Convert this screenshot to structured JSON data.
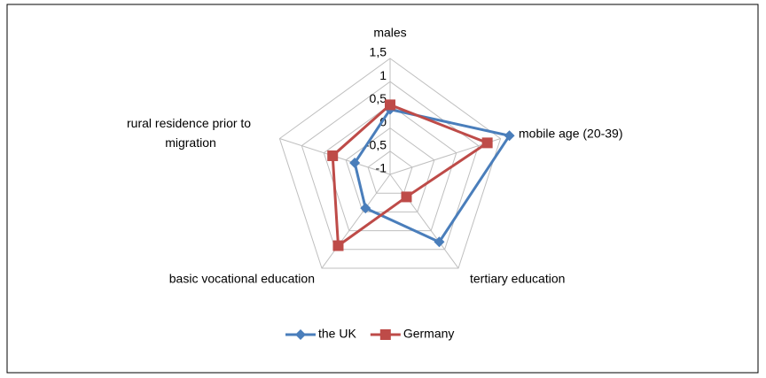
{
  "chart_data": {
    "type": "radar",
    "categories": [
      "males",
      "mobile age (20-39)",
      "tertiary education",
      "basic vocational education",
      "rural residence prior to migration"
    ],
    "series": [
      {
        "name": "the UK",
        "color": "#4a7ebb",
        "marker": "diamond",
        "values": [
          0.4,
          1.7,
          0.8,
          -0.1,
          -0.2
        ]
      },
      {
        "name": "Germany",
        "color": "#be4b48",
        "marker": "square",
        "values": [
          0.5,
          1.2,
          -0.4,
          0.9,
          0.3
        ]
      }
    ],
    "ylim": [
      -1,
      1.5
    ],
    "yticks": [
      -1,
      {
        "value": -0.5,
        "label": "-0,5"
      },
      0,
      {
        "value": 0.5,
        "label": "0,5"
      },
      1,
      {
        "value": 1.5,
        "label": "1,5"
      }
    ],
    "grid": true,
    "legend": "bottom"
  }
}
